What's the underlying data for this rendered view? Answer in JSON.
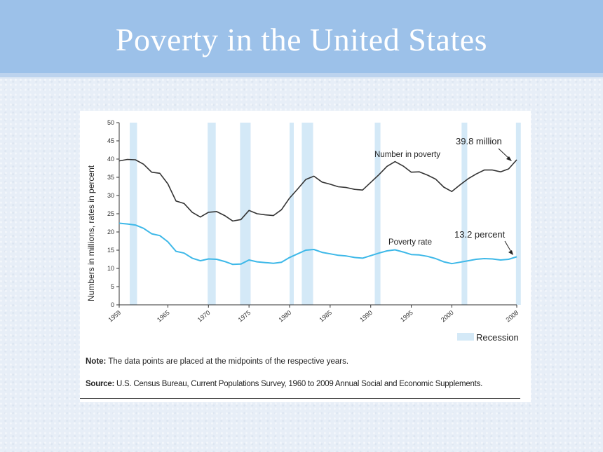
{
  "title": "Poverty in the United States",
  "chart_data": {
    "type": "line",
    "ylabel": "Numbers in millions, rates in percent",
    "ylim": [
      0,
      50
    ],
    "yticks": [
      0,
      5,
      10,
      15,
      20,
      25,
      30,
      35,
      40,
      45,
      50
    ],
    "xlim": [
      1959,
      2008
    ],
    "xticks": [
      1959,
      1965,
      1970,
      1975,
      1980,
      1985,
      1990,
      1995,
      2000,
      2008
    ],
    "recessions": [
      [
        1960.3,
        1961.2
      ],
      [
        1969.9,
        1970.9
      ],
      [
        1973.9,
        1975.2
      ],
      [
        1980.0,
        1980.5
      ],
      [
        1981.5,
        1982.9
      ],
      [
        1990.5,
        1991.2
      ],
      [
        2001.2,
        2001.9
      ],
      [
        2007.9,
        2008.5
      ]
    ],
    "legend": {
      "label": "Recession",
      "color": "#d4e9f7"
    },
    "series": [
      {
        "name": "Number in poverty",
        "color": "#333333",
        "points": [
          [
            1959,
            39.5
          ],
          [
            1960,
            39.9
          ],
          [
            1961,
            39.8
          ],
          [
            1962,
            38.6
          ],
          [
            1963,
            36.4
          ],
          [
            1964,
            36.1
          ],
          [
            1965,
            33.2
          ],
          [
            1966,
            28.5
          ],
          [
            1967,
            27.8
          ],
          [
            1968,
            25.4
          ],
          [
            1969,
            24.1
          ],
          [
            1970,
            25.4
          ],
          [
            1971,
            25.6
          ],
          [
            1972,
            24.5
          ],
          [
            1973,
            23.0
          ],
          [
            1974,
            23.4
          ],
          [
            1975,
            25.9
          ],
          [
            1976,
            25.0
          ],
          [
            1977,
            24.7
          ],
          [
            1978,
            24.5
          ],
          [
            1979,
            26.1
          ],
          [
            1980,
            29.3
          ],
          [
            1981,
            31.8
          ],
          [
            1982,
            34.4
          ],
          [
            1983,
            35.3
          ],
          [
            1984,
            33.7
          ],
          [
            1985,
            33.1
          ],
          [
            1986,
            32.4
          ],
          [
            1987,
            32.2
          ],
          [
            1988,
            31.7
          ],
          [
            1989,
            31.5
          ],
          [
            1990,
            33.6
          ],
          [
            1991,
            35.7
          ],
          [
            1992,
            38.0
          ],
          [
            1993,
            39.3
          ],
          [
            1994,
            38.1
          ],
          [
            1995,
            36.4
          ],
          [
            1996,
            36.5
          ],
          [
            1997,
            35.6
          ],
          [
            1998,
            34.5
          ],
          [
            1999,
            32.3
          ],
          [
            2000,
            31.1
          ],
          [
            2001,
            32.9
          ],
          [
            2002,
            34.6
          ],
          [
            2003,
            35.9
          ],
          [
            2004,
            37.0
          ],
          [
            2005,
            37.0
          ],
          [
            2006,
            36.5
          ],
          [
            2007,
            37.3
          ],
          [
            2008,
            39.8
          ]
        ]
      },
      {
        "name": "Poverty rate",
        "color": "#3db8e8",
        "points": [
          [
            1959,
            22.4
          ],
          [
            1960,
            22.2
          ],
          [
            1961,
            21.9
          ],
          [
            1962,
            21.0
          ],
          [
            1963,
            19.5
          ],
          [
            1964,
            19.0
          ],
          [
            1965,
            17.3
          ],
          [
            1966,
            14.7
          ],
          [
            1967,
            14.2
          ],
          [
            1968,
            12.8
          ],
          [
            1969,
            12.1
          ],
          [
            1970,
            12.6
          ],
          [
            1971,
            12.5
          ],
          [
            1972,
            11.9
          ],
          [
            1973,
            11.1
          ],
          [
            1974,
            11.2
          ],
          [
            1975,
            12.3
          ],
          [
            1976,
            11.8
          ],
          [
            1977,
            11.6
          ],
          [
            1978,
            11.4
          ],
          [
            1979,
            11.7
          ],
          [
            1980,
            13.0
          ],
          [
            1981,
            14.0
          ],
          [
            1982,
            15.0
          ],
          [
            1983,
            15.2
          ],
          [
            1984,
            14.4
          ],
          [
            1985,
            14.0
          ],
          [
            1986,
            13.6
          ],
          [
            1987,
            13.4
          ],
          [
            1988,
            13.0
          ],
          [
            1989,
            12.8
          ],
          [
            1990,
            13.5
          ],
          [
            1991,
            14.2
          ],
          [
            1992,
            14.8
          ],
          [
            1993,
            15.1
          ],
          [
            1994,
            14.5
          ],
          [
            1995,
            13.8
          ],
          [
            1996,
            13.7
          ],
          [
            1997,
            13.3
          ],
          [
            1998,
            12.7
          ],
          [
            1999,
            11.8
          ],
          [
            2000,
            11.3
          ],
          [
            2001,
            11.7
          ],
          [
            2002,
            12.1
          ],
          [
            2003,
            12.5
          ],
          [
            2004,
            12.7
          ],
          [
            2005,
            12.6
          ],
          [
            2006,
            12.3
          ],
          [
            2007,
            12.5
          ],
          [
            2008,
            13.2
          ]
        ]
      }
    ],
    "annotations": {
      "number_label": "Number in poverty",
      "rate_label": "Poverty rate",
      "end_number": "39.8 million",
      "end_rate": "13.2 percent"
    }
  },
  "note": {
    "prefix": "Note:",
    "text": " The data points are placed at the midpoints of the respective years."
  },
  "source": {
    "prefix": "Source:",
    "text": " U.S. Census Bureau, Current Populations Survey, 1960 to 2009 Annual Social and Economic Supplements."
  }
}
